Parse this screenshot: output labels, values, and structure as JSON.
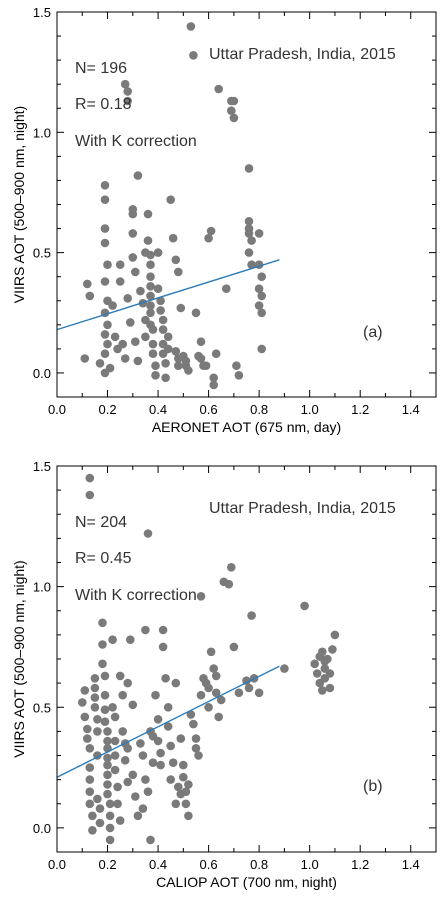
{
  "chart_data": [
    {
      "type": "scatter",
      "panel_label": "(a)",
      "xlabel": "AERONET AOT (675 nm, day)",
      "ylabel": "VIIRS AOT (500–900 nm, night)",
      "xlim": [
        0.0,
        1.5
      ],
      "ylim": [
        -0.1,
        1.5
      ],
      "xticks": [
        "0.0",
        "0.2",
        "0.4",
        "0.6",
        "0.8",
        "1.0",
        "1.2",
        "1.4"
      ],
      "yticks": [
        "0.0",
        "0.5",
        "1.0",
        "1.5"
      ],
      "annotations": {
        "location": "Uttar Pradesh, India, 2015",
        "n": "N= 196",
        "r": "R= 0.18",
        "correction": "With K correction"
      },
      "point_color": "#7a7a7a",
      "fit_color": "#2b7bb9",
      "fit_line": {
        "x": [
          0.0,
          0.88
        ],
        "y": [
          0.18,
          0.47
        ]
      },
      "points": [
        [
          0.12,
          0.37
        ],
        [
          0.13,
          0.32
        ],
        [
          0.11,
          0.06
        ],
        [
          0.17,
          0.04
        ],
        [
          0.19,
          0.78
        ],
        [
          0.19,
          0.72
        ],
        [
          0.19,
          0.6
        ],
        [
          0.19,
          0.54
        ],
        [
          0.2,
          0.45
        ],
        [
          0.19,
          0.38
        ],
        [
          0.2,
          0.3
        ],
        [
          0.19,
          0.25
        ],
        [
          0.2,
          0.2
        ],
        [
          0.19,
          0.16
        ],
        [
          0.2,
          0.12
        ],
        [
          0.19,
          0.08
        ],
        [
          0.21,
          0.02
        ],
        [
          0.19,
          0.0
        ],
        [
          0.22,
          0.28
        ],
        [
          0.23,
          0.15
        ],
        [
          0.24,
          0.1
        ],
        [
          0.25,
          0.45
        ],
        [
          0.25,
          0.38
        ],
        [
          0.26,
          0.12
        ],
        [
          0.27,
          0.06
        ],
        [
          0.27,
          1.2
        ],
        [
          0.28,
          1.17
        ],
        [
          0.28,
          1.13
        ],
        [
          0.28,
          0.31
        ],
        [
          0.29,
          0.21
        ],
        [
          0.3,
          0.68
        ],
        [
          0.3,
          0.66
        ],
        [
          0.3,
          0.58
        ],
        [
          0.3,
          0.48
        ],
        [
          0.31,
          0.42
        ],
        [
          0.31,
          0.13
        ],
        [
          0.32,
          0.82
        ],
        [
          0.32,
          0.05
        ],
        [
          0.33,
          0.34
        ],
        [
          0.34,
          0.29
        ],
        [
          0.35,
          0.5
        ],
        [
          0.35,
          0.22
        ],
        [
          0.35,
          0.15
        ],
        [
          0.36,
          0.66
        ],
        [
          0.36,
          0.55
        ],
        [
          0.37,
          0.49
        ],
        [
          0.37,
          0.45
        ],
        [
          0.37,
          0.4
        ],
        [
          0.37,
          0.36
        ],
        [
          0.37,
          0.32
        ],
        [
          0.37,
          0.28
        ],
        [
          0.37,
          0.25
        ],
        [
          0.37,
          0.2
        ],
        [
          0.38,
          0.18
        ],
        [
          0.38,
          0.12
        ],
        [
          0.38,
          0.08
        ],
        [
          0.39,
          0.03
        ],
        [
          0.39,
          -0.01
        ],
        [
          0.4,
          0.5
        ],
        [
          0.4,
          0.35
        ],
        [
          0.41,
          0.3
        ],
        [
          0.41,
          0.26
        ],
        [
          0.42,
          0.22
        ],
        [
          0.42,
          0.18
        ],
        [
          0.42,
          0.12
        ],
        [
          0.42,
          0.08
        ],
        [
          0.43,
          0.04
        ],
        [
          0.43,
          -0.02
        ],
        [
          0.44,
          0.15
        ],
        [
          0.44,
          0.1
        ],
        [
          0.45,
          0.72
        ],
        [
          0.46,
          0.56
        ],
        [
          0.47,
          0.47
        ],
        [
          0.48,
          0.42
        ],
        [
          0.47,
          0.09
        ],
        [
          0.48,
          0.06
        ],
        [
          0.48,
          0.03
        ],
        [
          0.49,
          0.27
        ],
        [
          0.5,
          0.07
        ],
        [
          0.51,
          0.05
        ],
        [
          0.51,
          0.03
        ],
        [
          0.52,
          0.01
        ],
        [
          0.53,
          1.44
        ],
        [
          0.54,
          1.32
        ],
        [
          0.55,
          0.25
        ],
        [
          0.56,
          0.07
        ],
        [
          0.57,
          0.06
        ],
        [
          0.57,
          0.13
        ],
        [
          0.58,
          0.03
        ],
        [
          0.59,
          0.03
        ],
        [
          0.6,
          0.56
        ],
        [
          0.61,
          0.59
        ],
        [
          0.62,
          -0.02
        ],
        [
          0.62,
          -0.05
        ],
        [
          0.63,
          0.08
        ],
        [
          0.64,
          1.18
        ],
        [
          0.67,
          0.35
        ],
        [
          0.69,
          1.13
        ],
        [
          0.69,
          1.09
        ],
        [
          0.7,
          1.06
        ],
        [
          0.7,
          1.13
        ],
        [
          0.71,
          0.03
        ],
        [
          0.72,
          -0.01
        ],
        [
          0.76,
          0.85
        ],
        [
          0.76,
          0.63
        ],
        [
          0.76,
          0.6
        ],
        [
          0.76,
          0.58
        ],
        [
          0.77,
          0.55
        ],
        [
          0.76,
          0.5
        ],
        [
          0.77,
          0.45
        ],
        [
          0.8,
          0.58
        ],
        [
          0.8,
          0.45
        ],
        [
          0.81,
          0.4
        ],
        [
          0.8,
          0.35
        ],
        [
          0.81,
          0.32
        ],
        [
          0.8,
          0.28
        ],
        [
          0.81,
          0.25
        ],
        [
          0.81,
          0.1
        ]
      ]
    },
    {
      "type": "scatter",
      "panel_label": "(b)",
      "xlabel": "CALIOP AOT (700 nm, night)",
      "ylabel": "VIIRS AOT (500–900 nm, night)",
      "xlim": [
        0.0,
        1.5
      ],
      "ylim": [
        -0.1,
        1.5
      ],
      "xticks": [
        "0.0",
        "0.2",
        "0.4",
        "0.6",
        "0.8",
        "1.0",
        "1.2",
        "1.4"
      ],
      "yticks": [
        "0.0",
        "0.5",
        "1.0",
        "1.5"
      ],
      "annotations": {
        "location": "Uttar Pradesh, India, 2015",
        "n": "N= 204",
        "r": "R= 0.45",
        "correction": "With K correction"
      },
      "point_color": "#7a7a7a",
      "fit_color": "#2b7bb9",
      "fit_line": {
        "x": [
          0.0,
          0.88
        ],
        "y": [
          0.21,
          0.67
        ]
      },
      "points": [
        [
          0.13,
          1.45
        ],
        [
          0.13,
          1.38
        ],
        [
          0.36,
          1.22
        ],
        [
          0.1,
          0.52
        ],
        [
          0.11,
          0.57
        ],
        [
          0.11,
          0.46
        ],
        [
          0.12,
          0.41
        ],
        [
          0.12,
          0.37
        ],
        [
          0.13,
          0.33
        ],
        [
          0.13,
          0.25
        ],
        [
          0.13,
          0.2
        ],
        [
          0.13,
          0.15
        ],
        [
          0.13,
          0.1
        ],
        [
          0.14,
          0.05
        ],
        [
          0.14,
          -0.01
        ],
        [
          0.15,
          0.62
        ],
        [
          0.15,
          0.58
        ],
        [
          0.15,
          0.54
        ],
        [
          0.15,
          0.5
        ],
        [
          0.16,
          0.45
        ],
        [
          0.16,
          0.4
        ],
        [
          0.16,
          0.3
        ],
        [
          0.16,
          0.12
        ],
        [
          0.17,
          0.08
        ],
        [
          0.17,
          0.02
        ],
        [
          0.18,
          0.85
        ],
        [
          0.18,
          0.76
        ],
        [
          0.18,
          0.68
        ],
        [
          0.19,
          0.63
        ],
        [
          0.19,
          0.55
        ],
        [
          0.19,
          0.49
        ],
        [
          0.19,
          0.44
        ],
        [
          0.2,
          0.4
        ],
        [
          0.2,
          0.36
        ],
        [
          0.2,
          0.33
        ],
        [
          0.2,
          0.29
        ],
        [
          0.2,
          0.26
        ],
        [
          0.2,
          0.22
        ],
        [
          0.2,
          0.18
        ],
        [
          0.2,
          0.14
        ],
        [
          0.21,
          0.1
        ],
        [
          0.21,
          0.05
        ],
        [
          0.21,
          0.0
        ],
        [
          0.21,
          -0.05
        ],
        [
          0.22,
          0.78
        ],
        [
          0.22,
          0.5
        ],
        [
          0.23,
          0.46
        ],
        [
          0.23,
          0.36
        ],
        [
          0.23,
          0.3
        ],
        [
          0.23,
          0.24
        ],
        [
          0.24,
          0.17
        ],
        [
          0.24,
          0.1
        ],
        [
          0.25,
          0.03
        ],
        [
          0.25,
          0.63
        ],
        [
          0.26,
          0.55
        ],
        [
          0.26,
          0.4
        ],
        [
          0.27,
          0.35
        ],
        [
          0.27,
          0.28
        ],
        [
          0.28,
          0.6
        ],
        [
          0.28,
          0.33
        ],
        [
          0.28,
          0.19
        ],
        [
          0.29,
          0.78
        ],
        [
          0.3,
          0.51
        ],
        [
          0.3,
          0.22
        ],
        [
          0.31,
          0.13
        ],
        [
          0.32,
          0.05
        ],
        [
          0.33,
          0.35
        ],
        [
          0.34,
          0.3
        ],
        [
          0.34,
          0.08
        ],
        [
          0.35,
          0.82
        ],
        [
          0.35,
          0.2
        ],
        [
          0.36,
          0.15
        ],
        [
          0.37,
          0.4
        ],
        [
          0.37,
          -0.05
        ],
        [
          0.38,
          0.38
        ],
        [
          0.38,
          0.27
        ],
        [
          0.39,
          0.55
        ],
        [
          0.4,
          0.45
        ],
        [
          0.4,
          0.36
        ],
        [
          0.41,
          0.31
        ],
        [
          0.41,
          0.26
        ],
        [
          0.42,
          0.82
        ],
        [
          0.42,
          0.75
        ],
        [
          0.43,
          0.62
        ],
        [
          0.44,
          0.5
        ],
        [
          0.44,
          0.42
        ],
        [
          0.45,
          0.34
        ],
        [
          0.45,
          0.2
        ],
        [
          0.46,
          0.27
        ],
        [
          0.47,
          0.6
        ],
        [
          0.47,
          0.1
        ],
        [
          0.48,
          0.17
        ],
        [
          0.49,
          0.14
        ],
        [
          0.49,
          0.37
        ],
        [
          0.5,
          0.26
        ],
        [
          0.5,
          0.21
        ],
        [
          0.51,
          0.15
        ],
        [
          0.51,
          0.1
        ],
        [
          0.52,
          0.18
        ],
        [
          0.52,
          0.05
        ],
        [
          0.53,
          0.47
        ],
        [
          0.54,
          0.43
        ],
        [
          0.55,
          0.37
        ],
        [
          0.55,
          0.33
        ],
        [
          0.56,
          0.3
        ],
        [
          0.57,
          0.55
        ],
        [
          0.57,
          0.96
        ],
        [
          0.58,
          0.62
        ],
        [
          0.59,
          0.6
        ],
        [
          0.6,
          0.58
        ],
        [
          0.6,
          0.5
        ],
        [
          0.61,
          0.73
        ],
        [
          0.62,
          0.66
        ],
        [
          0.63,
          0.63
        ],
        [
          0.63,
          0.56
        ],
        [
          0.64,
          0.46
        ],
        [
          0.65,
          0.53
        ],
        [
          0.66,
          1.02
        ],
        [
          0.68,
          1.01
        ],
        [
          0.69,
          1.08
        ],
        [
          0.7,
          0.75
        ],
        [
          0.72,
          0.56
        ],
        [
          0.75,
          0.61
        ],
        [
          0.76,
          0.58
        ],
        [
          0.77,
          0.88
        ],
        [
          0.78,
          0.62
        ],
        [
          0.8,
          0.56
        ],
        [
          0.9,
          0.66
        ],
        [
          0.98,
          0.92
        ],
        [
          1.02,
          0.68
        ],
        [
          1.03,
          0.64
        ],
        [
          1.04,
          0.71
        ],
        [
          1.04,
          0.6
        ],
        [
          1.05,
          0.57
        ],
        [
          1.05,
          0.73
        ],
        [
          1.06,
          0.66
        ],
        [
          1.06,
          0.62
        ],
        [
          1.07,
          0.7
        ],
        [
          1.08,
          0.58
        ],
        [
          1.08,
          0.64
        ],
        [
          1.09,
          0.74
        ],
        [
          1.1,
          0.8
        ],
        [
          1.06,
          0.69
        ]
      ]
    }
  ]
}
